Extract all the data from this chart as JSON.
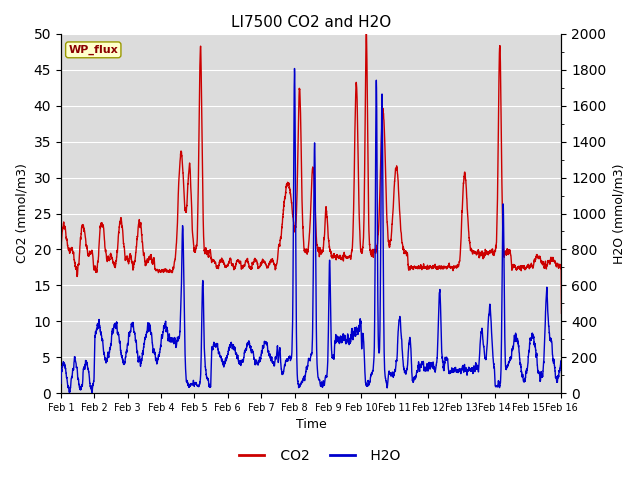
{
  "title": "LI7500 CO2 and H2O",
  "xlabel": "Time",
  "ylabel_left": "CO2 (mmol/m3)",
  "ylabel_right": "H2O (mmol/m3)",
  "site_label": "WP_flux",
  "co2_ylim": [
    0,
    50
  ],
  "h2o_ylim": [
    0,
    2000
  ],
  "co2_color": "#cc0000",
  "h2o_color": "#0000cc",
  "bg_color": "#dcdcdc",
  "fig_width": 6.4,
  "fig_height": 4.8,
  "dpi": 100,
  "xtick_labels": [
    "Feb 1",
    "Feb 2",
    "Feb 3",
    "Feb 4",
    "Feb 5",
    "Feb 6",
    "Feb 7",
    "Feb 8",
    "Feb 9",
    "Feb 10",
    "Feb 11",
    "Feb 12",
    "Feb 13",
    "Feb 14",
    "Feb 15",
    "Feb 16"
  ],
  "n_points": 5000,
  "right_yticks": [
    0,
    200,
    400,
    600,
    800,
    1000,
    1200,
    1400,
    1600,
    1800,
    2000
  ],
  "left_yticks": [
    0,
    5,
    10,
    15,
    20,
    25,
    30,
    35,
    40,
    45,
    50
  ]
}
